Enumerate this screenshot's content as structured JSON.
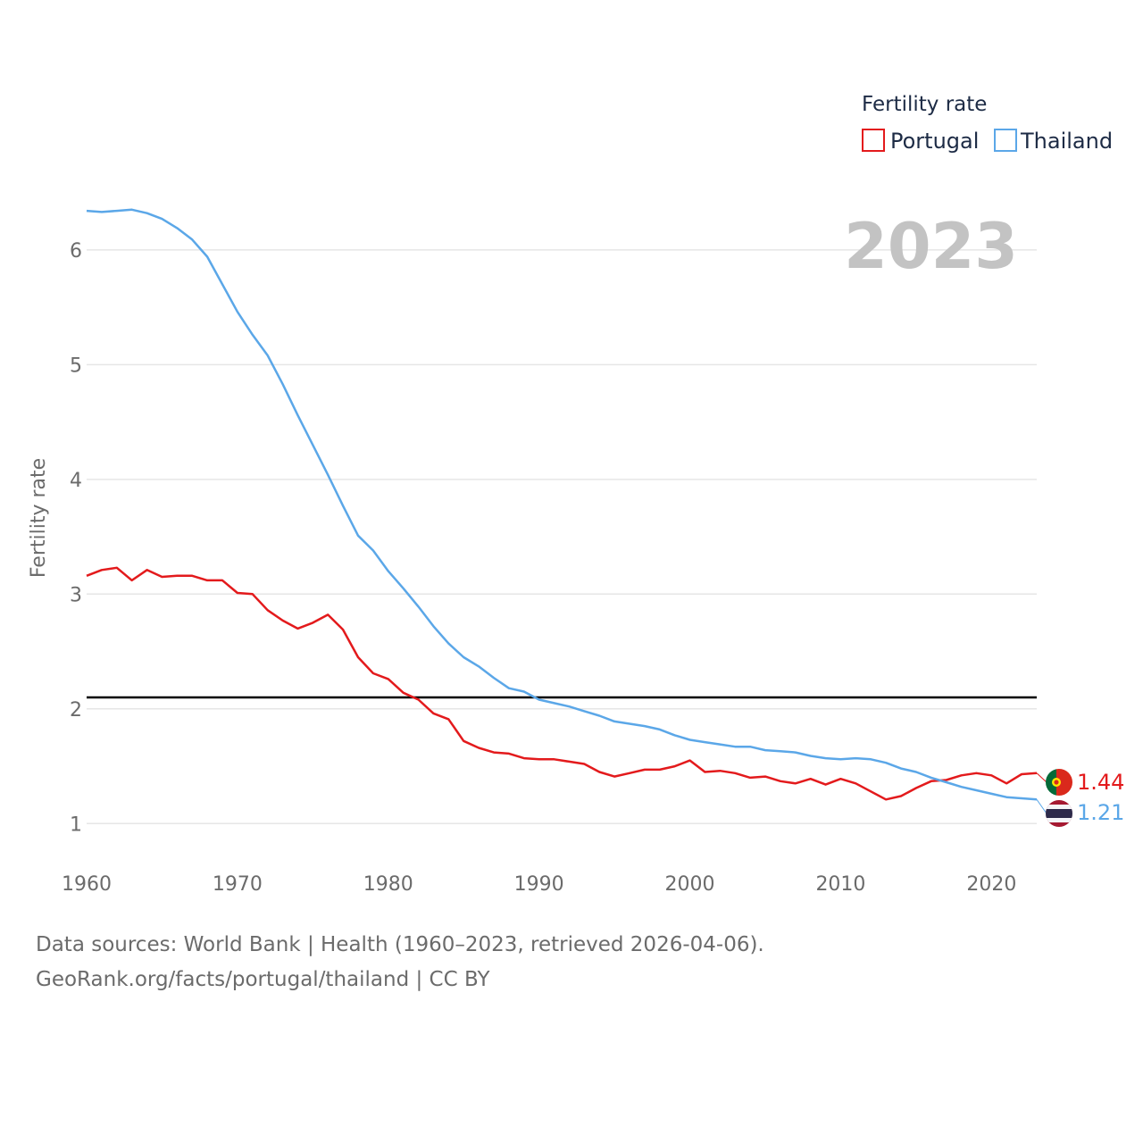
{
  "chart_data": {
    "type": "line",
    "title": "Fertility rate",
    "xlabel": "",
    "ylabel": "Fertility rate",
    "current_year": "2023",
    "xlim": [
      1960,
      2023
    ],
    "ylim": [
      0.8,
      6.45
    ],
    "x_ticks": [
      1960,
      1970,
      1980,
      1990,
      2000,
      2010,
      2020
    ],
    "y_ticks": [
      1,
      2,
      3,
      4,
      5,
      6
    ],
    "reference_line": 2.1,
    "x": [
      1960,
      1961,
      1962,
      1963,
      1964,
      1965,
      1966,
      1967,
      1968,
      1969,
      1970,
      1971,
      1972,
      1973,
      1974,
      1975,
      1976,
      1977,
      1978,
      1979,
      1980,
      1981,
      1982,
      1983,
      1984,
      1985,
      1986,
      1987,
      1988,
      1989,
      1990,
      1991,
      1992,
      1993,
      1994,
      1995,
      1996,
      1997,
      1998,
      1999,
      2000,
      2001,
      2002,
      2003,
      2004,
      2005,
      2006,
      2007,
      2008,
      2009,
      2010,
      2011,
      2012,
      2013,
      2014,
      2015,
      2016,
      2017,
      2018,
      2019,
      2020,
      2021,
      2022,
      2023
    ],
    "series": [
      {
        "name": "Portugal",
        "color": "#e31a1c",
        "end_value": "1.44",
        "flag": "portugal-flag",
        "values": [
          3.16,
          3.21,
          3.23,
          3.12,
          3.21,
          3.15,
          3.16,
          3.16,
          3.12,
          3.12,
          3.01,
          3.0,
          2.86,
          2.77,
          2.7,
          2.75,
          2.82,
          2.69,
          2.45,
          2.31,
          2.26,
          2.14,
          2.08,
          1.96,
          1.91,
          1.72,
          1.66,
          1.62,
          1.61,
          1.57,
          1.56,
          1.56,
          1.54,
          1.52,
          1.45,
          1.41,
          1.44,
          1.47,
          1.47,
          1.5,
          1.55,
          1.45,
          1.46,
          1.44,
          1.4,
          1.41,
          1.37,
          1.35,
          1.39,
          1.34,
          1.39,
          1.35,
          1.28,
          1.21,
          1.24,
          1.31,
          1.37,
          1.38,
          1.42,
          1.44,
          1.42,
          1.35,
          1.43,
          1.44
        ]
      },
      {
        "name": "Thailand",
        "color": "#5ba7e8",
        "end_value": "1.21",
        "flag": "thailand-flag",
        "values": [
          6.34,
          6.33,
          6.34,
          6.35,
          6.32,
          6.27,
          6.19,
          6.09,
          5.94,
          5.7,
          5.46,
          5.26,
          5.08,
          4.83,
          4.56,
          4.3,
          4.04,
          3.77,
          3.51,
          3.38,
          3.2,
          3.05,
          2.89,
          2.72,
          2.57,
          2.45,
          2.37,
          2.27,
          2.18,
          2.15,
          2.08,
          2.05,
          2.02,
          1.98,
          1.94,
          1.89,
          1.87,
          1.85,
          1.82,
          1.77,
          1.73,
          1.71,
          1.69,
          1.67,
          1.67,
          1.64,
          1.63,
          1.62,
          1.59,
          1.57,
          1.56,
          1.57,
          1.56,
          1.53,
          1.48,
          1.45,
          1.4,
          1.36,
          1.32,
          1.29,
          1.26,
          1.23,
          1.22,
          1.21
        ]
      }
    ]
  },
  "legend": {
    "title": "Fertility rate",
    "items": [
      {
        "label": "Portugal",
        "color": "#e31a1c"
      },
      {
        "label": "Thailand",
        "color": "#5ba7e8"
      }
    ]
  },
  "footer": {
    "sources": "Data sources: World Bank | Health (1960–2023, retrieved 2026-04-06).",
    "attribution": "GeoRank.org/facts/portugal/thailand | CC BY"
  }
}
